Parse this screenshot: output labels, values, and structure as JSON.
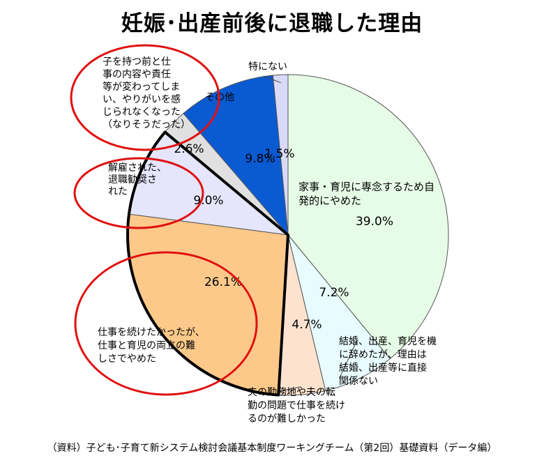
{
  "chart_data": {
    "type": "pie",
    "title": "妊娠･出産前後に退職した理由",
    "start": "12 o'clock, clockwise",
    "slices": [
      {
        "label": "家事・育児に専念するため自発的にやめた",
        "label_lines": [
          "家事・育児に専念するため自",
          "発的にやめた"
        ],
        "value": 39.0,
        "value_text": "39.0%",
        "color": "#e6fce6"
      },
      {
        "label": "結婚、出産、育児を機に辞めたが、理由は結婚、出産等に直接関係ない",
        "label_lines": [
          "結婚、出産、育児を機",
          "に辞めたが、理由は",
          "結婚、出産等に直接",
          "関係ない"
        ],
        "value": 7.2,
        "value_text": "7.2%",
        "color": "#e8fbff"
      },
      {
        "label": "夫の勤務地や夫の転勤の問題で仕事を続けるのが難しかった",
        "label_lines": [
          "夫の勤務地や夫の転",
          "勤の問題で仕事を続け",
          "るのが難しかった"
        ],
        "value": 4.7,
        "value_text": "4.7%",
        "color": "#fde3cf"
      },
      {
        "label": "仕事を続けたかったが、仕事と育児の両立の難しさでやめた",
        "label_lines": [
          "仕事を続けたかったが、",
          "仕事と育児の両立の難",
          "しさでやめた"
        ],
        "value": 26.1,
        "value_text": "26.1%",
        "color": "#fdc98a"
      },
      {
        "label": "解雇された、退職勧奨された",
        "label_lines": [
          "解雇された、",
          "退職勧奨さ",
          "れた"
        ],
        "value": 9.0,
        "value_text": "9.0%",
        "color": "#e5e5fc"
      },
      {
        "label": "子を持つ前と仕事の内容や責任等が変わってしまい、やりがいを感じられなくなった（なりそうだった）",
        "label_lines": [
          "子を持つ前と仕",
          "事の内容や責任",
          "等が変わってしま",
          "い、やりがいを感",
          "じられなくなった",
          "（なりそうだった）"
        ],
        "value": 2.6,
        "value_text": "2.6%",
        "color": "#e0e0e0"
      },
      {
        "label": "その他",
        "label_lines": [
          "その他"
        ],
        "value": 9.8,
        "value_text": "9.8%",
        "color": "#0a5ad2"
      },
      {
        "label": "特にない",
        "label_lines": [
          "特にない"
        ],
        "value": 1.5,
        "value_text": "1.5%",
        "color": "#d9d9f8"
      }
    ],
    "annotations": [
      "red ellipse around やりがい label",
      "red ellipse around 解雇 label",
      "red ellipse around 両立 label",
      "thick outline around 両立 and 解雇 slices"
    ]
  },
  "source": "（資料）子ども･子育て新システム検討会議基本制度ワーキングチーム（第2回）基礎資料（データ編）"
}
